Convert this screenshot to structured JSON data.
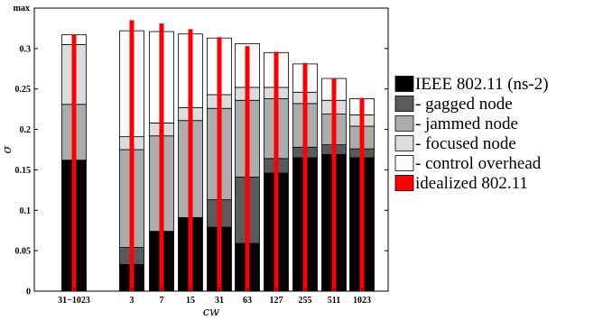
{
  "chart_data": {
    "type": "bar",
    "stacked": true,
    "xlabel": "cw",
    "ylabel": "σ",
    "ylim": [
      0,
      0.35
    ],
    "y_top_label": "max",
    "yticks": [
      "0",
      "0.05",
      "0.1",
      "0.15",
      "0.2",
      "0.25",
      "0.3"
    ],
    "grid": false,
    "legend_position": "right",
    "categories": [
      "31−1023",
      "3",
      "7",
      "15",
      "31",
      "63",
      "127",
      "255",
      "511",
      "1023"
    ],
    "category_gap_after": 0,
    "series": [
      {
        "name": "IEEE 802.11 (ns-2)",
        "legend_prefix": "",
        "color": "#000000",
        "values": [
          0.162,
          0.033,
          0.074,
          0.091,
          0.079,
          0.059,
          0.146,
          0.165,
          0.169,
          0.165
        ]
      },
      {
        "name": "gagged node",
        "legend_prefix": "- ",
        "color": "#5a5a5a",
        "values": [
          0,
          0.021,
          0,
          0,
          0.034,
          0.082,
          0.018,
          0.013,
          0.012,
          0.011
        ]
      },
      {
        "name": "jammed node",
        "legend_prefix": "- ",
        "color": "#acacac",
        "values": [
          0.069,
          0.121,
          0.118,
          0.12,
          0.113,
          0.095,
          0.074,
          0.054,
          0.038,
          0.028
        ]
      },
      {
        "name": "focused node",
        "legend_prefix": "- ",
        "color": "#dcdcdc",
        "values": [
          0.074,
          0.016,
          0.016,
          0.016,
          0.017,
          0.016,
          0.014,
          0.014,
          0.017,
          0.014
        ]
      },
      {
        "name": "control overhead",
        "legend_prefix": "- ",
        "color": "#fcfcfc",
        "values": [
          0.012,
          0.131,
          0.113,
          0.091,
          0.07,
          0.054,
          0.043,
          0.035,
          0.027,
          0.02
        ]
      }
    ],
    "ideal_series": {
      "name": "idealized 802.11",
      "color": "#ff0000",
      "values": [
        0.317,
        0.335,
        0.331,
        0.324,
        0.314,
        0.303,
        0.296,
        0.282,
        0.263,
        0.239
      ]
    }
  }
}
